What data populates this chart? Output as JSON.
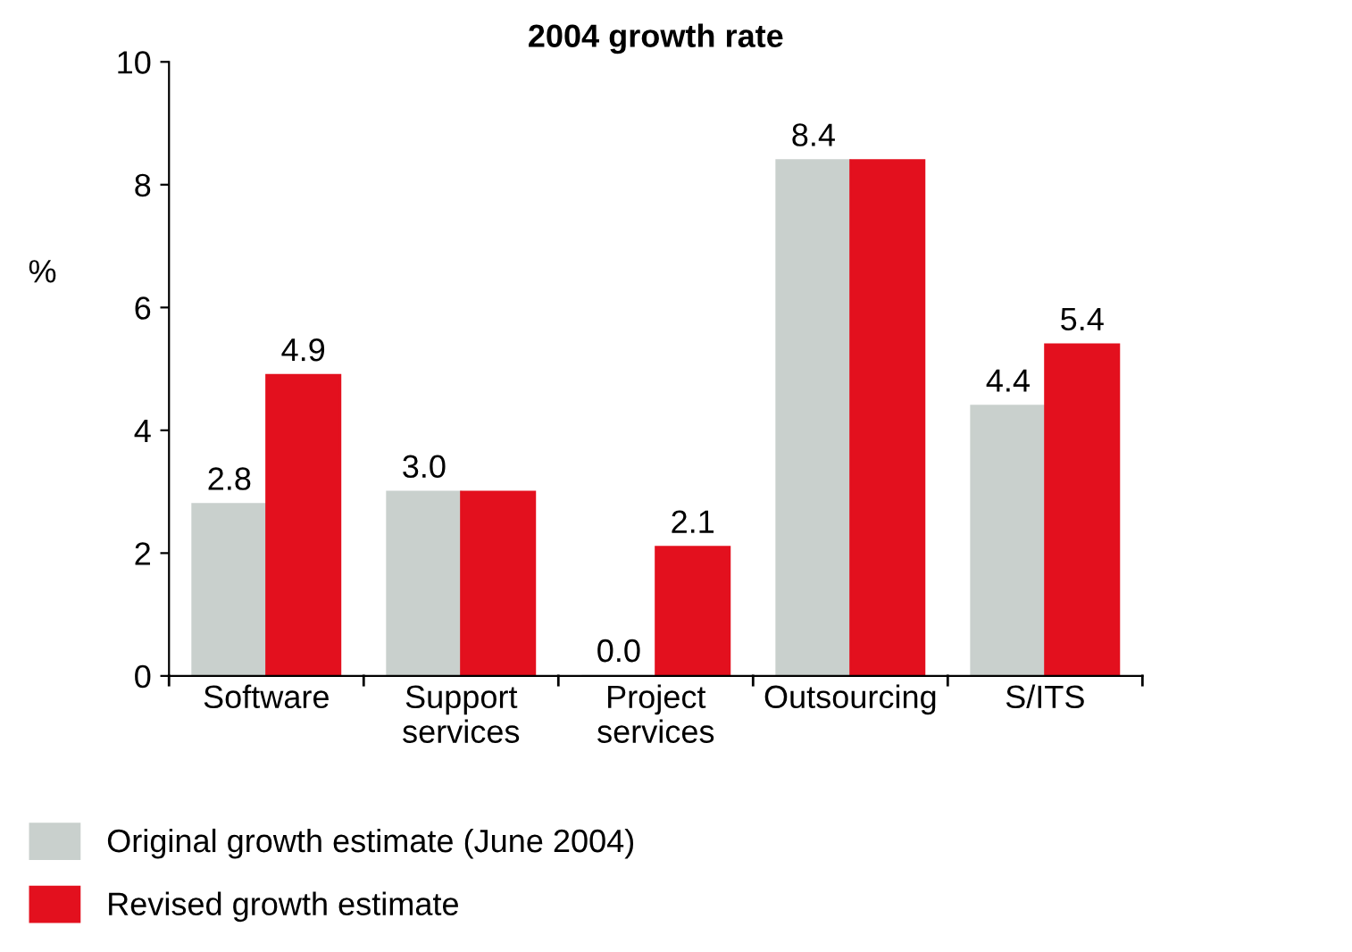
{
  "chart_data": {
    "type": "bar",
    "title": "2004 growth rate",
    "ylabel": "%",
    "categories": [
      "Software",
      "Support\nservices",
      "Project\nservices",
      "Outsourcing",
      "S/ITS"
    ],
    "series": [
      {
        "name": "Original growth estimate (June 2004)",
        "color": "#c9d0cd",
        "values": [
          2.8,
          3.0,
          0.0,
          8.4,
          4.4
        ],
        "value_labels": [
          "2.8",
          "3.0",
          "0.0",
          "8.4",
          "4.4"
        ]
      },
      {
        "name": "Revised growth estimate",
        "color": "#e3101e",
        "values": [
          4.9,
          3.0,
          2.1,
          8.4,
          5.4
        ],
        "value_labels": [
          "4.9",
          null,
          "2.1",
          null,
          "5.4"
        ]
      }
    ],
    "ylim": [
      0,
      10
    ],
    "yticks": [
      0,
      2,
      4,
      6,
      8,
      10
    ],
    "grid": false,
    "legend": "bottom left"
  }
}
